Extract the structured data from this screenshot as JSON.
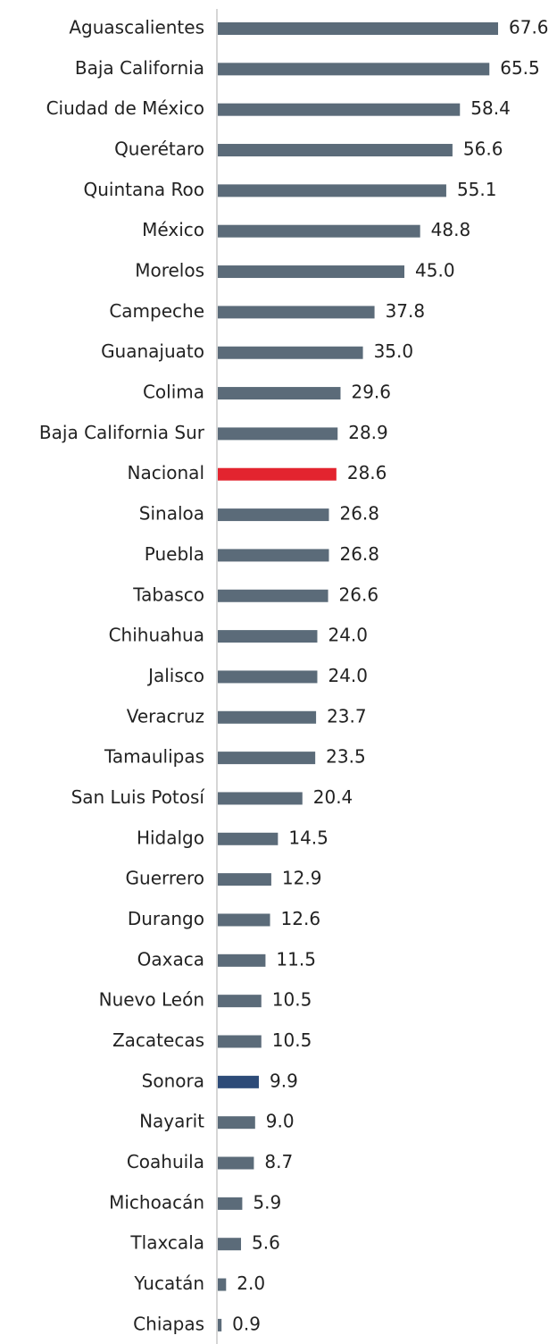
{
  "chart_data": {
    "type": "bar",
    "orientation": "horizontal",
    "categories": [
      "Aguascalientes",
      "Baja California",
      "Ciudad de México",
      "Querétaro",
      "Quintana Roo",
      "México",
      "Morelos",
      "Campeche",
      "Guanajuato",
      "Colima",
      "Baja California Sur",
      "Nacional",
      "Sinaloa",
      "Puebla",
      "Tabasco",
      "Chihuahua",
      "Jalisco",
      "Veracruz",
      "Tamaulipas",
      "San Luis Potosí",
      "Hidalgo",
      "Guerrero",
      "Durango",
      "Oaxaca",
      "Nuevo León",
      "Zacatecas",
      "Sonora",
      "Nayarit",
      "Coahuila",
      "Michoacán",
      "Tlaxcala",
      "Yucatán",
      "Chiapas"
    ],
    "values": [
      67.6,
      65.5,
      58.4,
      56.6,
      55.1,
      48.8,
      45.0,
      37.8,
      35.0,
      29.6,
      28.9,
      28.6,
      26.8,
      26.8,
      26.6,
      24.0,
      24.0,
      23.7,
      23.5,
      20.4,
      14.5,
      12.9,
      12.6,
      11.5,
      10.5,
      10.5,
      9.9,
      9.0,
      8.7,
      5.9,
      5.6,
      2.0,
      0.9
    ],
    "value_labels": [
      "67.6",
      "65.5",
      "58.4",
      "56.6",
      "55.1",
      "48.8",
      "45.0",
      "37.8",
      "35.0",
      "29.6",
      "28.9",
      "28.6",
      "26.8",
      "26.8",
      "26.6",
      "24.0",
      "24.0",
      "23.7",
      "23.5",
      "20.4",
      "14.5",
      "12.9",
      "12.6",
      "11.5",
      "10.5",
      "10.5",
      "9.9",
      "9.0",
      "8.7",
      "5.9",
      "5.6",
      "2.0",
      "0.9"
    ],
    "colors": [
      "#5b6b79",
      "#5b6b79",
      "#5b6b79",
      "#5b6b79",
      "#5b6b79",
      "#5b6b79",
      "#5b6b79",
      "#5b6b79",
      "#5b6b79",
      "#5b6b79",
      "#5b6b79",
      "#e3242f",
      "#5b6b79",
      "#5b6b79",
      "#5b6b79",
      "#5b6b79",
      "#5b6b79",
      "#5b6b79",
      "#5b6b79",
      "#5b6b79",
      "#5b6b79",
      "#5b6b79",
      "#5b6b79",
      "#5b6b79",
      "#5b6b79",
      "#5b6b79",
      "#2d4b78",
      "#5b6b79",
      "#5b6b79",
      "#5b6b79",
      "#5b6b79",
      "#5b6b79",
      "#5b6b79"
    ]
  }
}
